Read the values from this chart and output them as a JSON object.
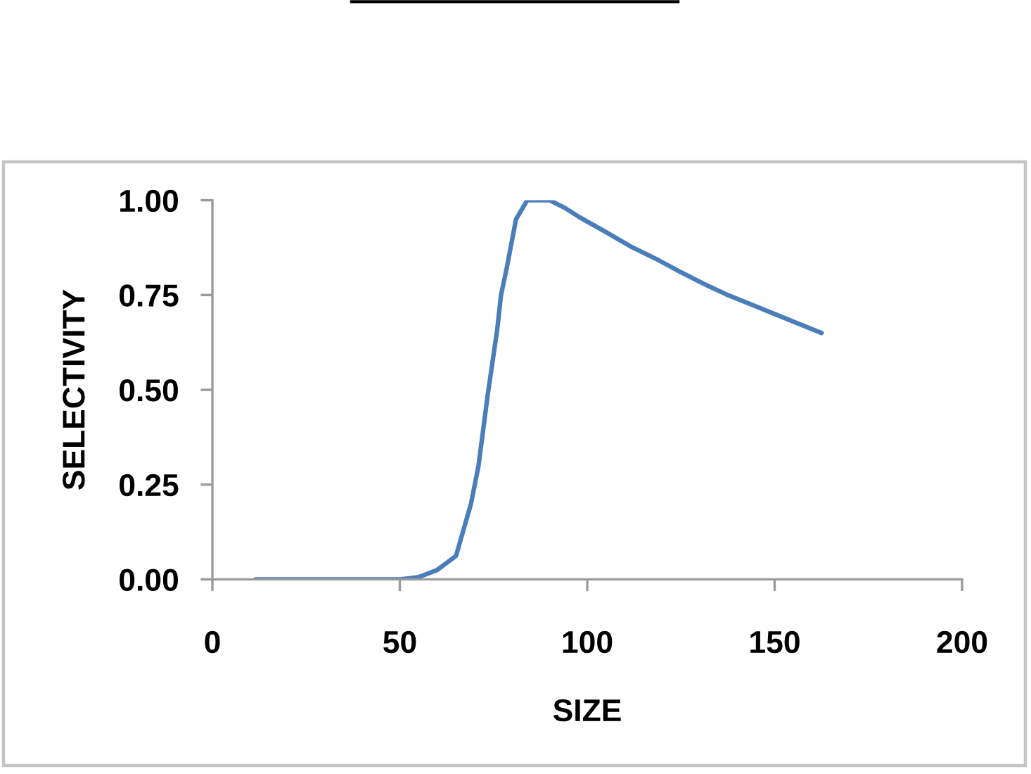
{
  "chart_data": {
    "type": "line",
    "xlabel": "SIZE",
    "ylabel": "SELECTIVITY",
    "x": [
      11.5,
      30,
      50,
      55,
      60,
      65,
      69,
      71,
      73.5,
      76,
      77,
      78.5,
      81,
      84,
      90,
      94,
      98,
      105,
      112,
      119,
      125,
      131,
      137,
      144,
      150,
      156,
      162.5
    ],
    "series": [
      {
        "color": "#4a7ebb",
        "values": [
          0,
          0,
          0,
          0.006,
          0.025,
          0.062,
          0.2,
          0.3,
          0.49,
          0.66,
          0.75,
          0.82,
          0.95,
          1.0,
          1.0,
          0.98,
          0.955,
          0.916,
          0.876,
          0.842,
          0.81,
          0.78,
          0.752,
          0.724,
          0.7,
          0.676,
          0.65
        ]
      }
    ],
    "xlim": [
      0,
      200
    ],
    "xticks": [
      0,
      50,
      100,
      150,
      200
    ],
    "ylim": [
      0,
      1
    ],
    "yticks": [
      {
        "value": 0,
        "label": "0.00"
      },
      {
        "value": 0.25,
        "label": "0.25"
      },
      {
        "value": 0.5,
        "label": "0.50"
      },
      {
        "value": 0.75,
        "label": "0.75"
      },
      {
        "value": 1,
        "label": "1.00"
      }
    ],
    "marker": "none",
    "line_style": "solid"
  }
}
